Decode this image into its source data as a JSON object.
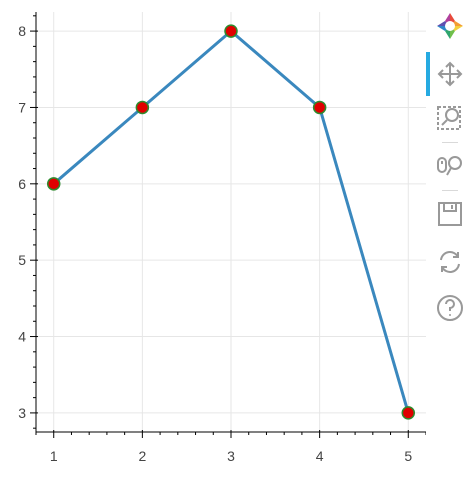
{
  "chart_data": {
    "type": "line",
    "title": "",
    "xlabel": "",
    "ylabel": "",
    "x": [
      1,
      2,
      3,
      4,
      5
    ],
    "series": [
      {
        "values": [
          6,
          7,
          8,
          7,
          3
        ],
        "line_color": "#3a88be",
        "marker_fill": "#e00000",
        "marker_edge": "#2e8b2e"
      }
    ],
    "xlim": [
      0.8,
      5.2
    ],
    "ylim": [
      2.75,
      8.25
    ],
    "xticks": [
      1,
      2,
      3,
      4,
      5
    ],
    "yticks": [
      3,
      4,
      5,
      6,
      7,
      8
    ],
    "grid": true
  },
  "toolbar": {
    "tools": [
      {
        "name": "bokeh-logo-icon",
        "active": false
      },
      {
        "name": "pan-icon",
        "active": true
      },
      {
        "name": "box-zoom-icon",
        "active": false
      },
      {
        "name": "wheel-zoom-icon",
        "active": false
      },
      {
        "name": "save-icon",
        "active": false
      },
      {
        "name": "reset-icon",
        "active": false
      },
      {
        "name": "help-icon",
        "active": false
      }
    ]
  },
  "colors": {
    "grid": "#e6e6e6",
    "axis": "#000000",
    "tick_text": "#444444",
    "tool_icon": "#999999",
    "active_tool": "#26aae1"
  }
}
